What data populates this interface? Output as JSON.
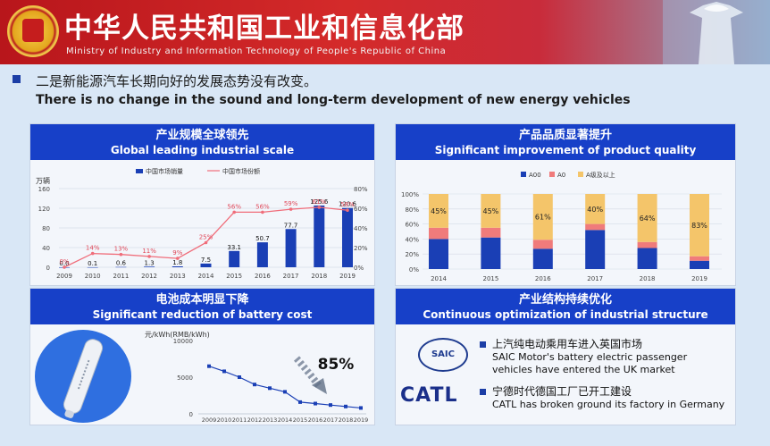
{
  "header": {
    "title_cn": "中华人民共和国工业和信息化部",
    "title_en": "Ministry of Industry and Information Technology of People's Republic of China"
  },
  "headline": {
    "cn": "二是新能源汽车长期向好的发展态势没有改变。",
    "en": "There is no change in the sound and long-term development of new energy vehicles"
  },
  "panels": {
    "scale": {
      "cn": "产业规模全球领先",
      "en": "Global leading industrial scale"
    },
    "quality": {
      "cn": "产品品质显著提升",
      "en": "Significant improvement of product quality"
    },
    "battery": {
      "cn": "电池成本明显下降",
      "en": "Significant reduction of battery cost"
    },
    "structure": {
      "cn": "产业结构持续优化",
      "en": "Continuous optimization of industrial structure"
    }
  },
  "notes": {
    "saic_cn": "上汽纯电动乘用车进入英国市场",
    "saic_en1": "SAIC Motor's battery electric passenger",
    "saic_en2": "vehicles have entered the UK market",
    "catl_cn": "宁德时代德国工厂已开工建设",
    "catl_en": "CATL has broken ground its factory in Germany",
    "saic_logo": "SAIC",
    "catl_logo": "CATL"
  },
  "chart_data": [
    {
      "type": "bar",
      "title": "",
      "ylabel": "万辆",
      "legend": [
        "中国市场销量",
        "中国市场份额"
      ],
      "categories": [
        "2009",
        "2010",
        "2011",
        "2012",
        "2013",
        "2014",
        "2015",
        "2016",
        "2017",
        "2018",
        "2019"
      ],
      "bar_values": [
        0.0,
        0.1,
        0.6,
        1.3,
        1.8,
        7.5,
        33.1,
        50.7,
        77.7,
        125.6,
        120.6
      ],
      "bar_labels": [
        "0.0",
        "0.1",
        "0.6",
        "1.3",
        "1.8",
        "7.5",
        "33.1",
        "50.7",
        "77.7",
        "125.6",
        "120.6"
      ],
      "line_values": [
        0,
        14,
        13,
        11,
        9,
        25,
        56,
        56,
        59,
        61,
        58
      ],
      "line_labels": [
        "0%",
        "14%",
        "13%",
        "11%",
        "9%",
        "25%",
        "56%",
        "56%",
        "59%",
        "61%",
        "58%"
      ],
      "y_ticks": [
        "0",
        "40",
        "80",
        "120",
        "160"
      ],
      "y2_ticks": [
        "0%",
        "20%",
        "40%",
        "60%",
        "80%"
      ],
      "ylim": [
        0,
        160
      ],
      "y2lim": [
        0,
        80
      ],
      "colors": {
        "bar": "#1a3fb5",
        "line": "#f06d7a"
      }
    },
    {
      "type": "bar",
      "stacked": true,
      "legend": [
        "A00",
        "A0",
        "A级及以上"
      ],
      "categories": [
        "2014",
        "2015",
        "2016",
        "2017",
        "2018",
        "2019"
      ],
      "series": [
        {
          "name": "A00",
          "values": [
            40,
            42,
            27,
            52,
            28,
            11
          ]
        },
        {
          "name": "A0",
          "values": [
            15,
            13,
            12,
            8,
            8,
            6
          ]
        },
        {
          "name": "A级及以上",
          "values": [
            45,
            45,
            61,
            40,
            64,
            83
          ]
        }
      ],
      "labels": [
        "45%",
        "45%",
        "61%",
        "40%",
        "64%",
        "83%"
      ],
      "y_ticks": [
        "0%",
        "20%",
        "40%",
        "60%",
        "80%",
        "100%"
      ],
      "ylim": [
        0,
        100
      ],
      "colors": [
        "#1a3fb5",
        "#f07b7b",
        "#f4c56a"
      ]
    },
    {
      "type": "line",
      "ylabel": "元/kWh(RMB/kWh)",
      "categories": [
        "2009",
        "2010",
        "2011",
        "2012",
        "2013",
        "2014",
        "2015",
        "2016",
        "2017",
        "2018",
        "2019"
      ],
      "values": [
        6500,
        5800,
        5000,
        4000,
        3500,
        3000,
        1600,
        1400,
        1200,
        1000,
        800
      ],
      "y_ticks": [
        "0",
        "5000",
        "10000"
      ],
      "ylim": [
        0,
        10000
      ],
      "annotation": "85%",
      "colors": {
        "line": "#1a3fb5"
      }
    }
  ]
}
